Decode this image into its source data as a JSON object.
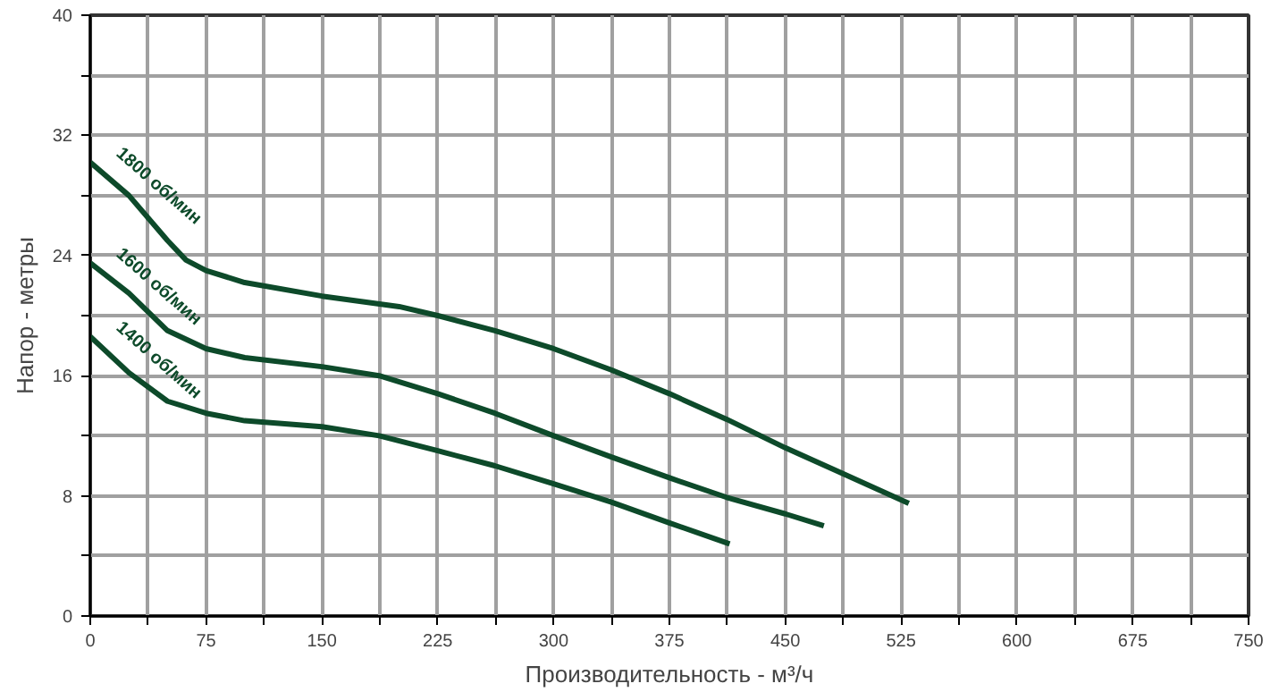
{
  "chart_data": {
    "type": "line",
    "xlabel": "Производительность - м³/ч",
    "ylabel": "Напор - метры",
    "xlim": [
      0,
      750
    ],
    "ylim": [
      0,
      40
    ],
    "xticks": [
      0,
      {
        "value": 37.5,
        "label": null
      },
      75,
      {
        "value": 112.5,
        "label": null
      },
      150,
      {
        "value": 187.5,
        "label": null
      },
      225,
      {
        "value": 262.5,
        "label": null
      },
      300,
      {
        "value": 337.5,
        "label": null
      },
      375,
      {
        "value": 412.5,
        "label": null
      },
      450,
      {
        "value": 487.5,
        "label": null
      },
      525,
      {
        "value": 562.5,
        "label": null
      },
      600,
      {
        "value": 637.5,
        "label": null
      },
      675,
      {
        "value": 712.5,
        "label": null
      },
      750
    ],
    "yticks": [
      0,
      {
        "value": 4,
        "label": null
      },
      8,
      {
        "value": 12,
        "label": null
      },
      16,
      {
        "value": 20,
        "label": null
      },
      24,
      {
        "value": 28,
        "label": null
      },
      32,
      {
        "value": 36,
        "label": null
      },
      40
    ],
    "grid": true,
    "marker": "none",
    "line_style": "solid",
    "series": [
      {
        "name": "1800 об/мин",
        "color": "#0d4a2a",
        "x": [
          0,
          25,
          50,
          62,
          75,
          100,
          150,
          200,
          225,
          262,
          300,
          337,
          375,
          412,
          450,
          487,
          530
        ],
        "values": [
          30.2,
          28,
          25,
          23.7,
          23,
          22.2,
          21.3,
          20.6,
          20,
          19,
          17.8,
          16.4,
          14.8,
          13.1,
          11.2,
          9.5,
          7.5
        ]
      },
      {
        "name": "1600 об/мин",
        "color": "#0d4a2a",
        "x": [
          0,
          25,
          50,
          75,
          100,
          150,
          187,
          225,
          262,
          300,
          337,
          375,
          412,
          450,
          475
        ],
        "values": [
          23.5,
          21.5,
          19,
          17.8,
          17.2,
          16.6,
          16,
          14.8,
          13.5,
          12,
          10.6,
          9.2,
          7.9,
          6.8,
          6
        ]
      },
      {
        "name": "1400 об/мин",
        "color": "#0d4a2a",
        "x": [
          0,
          25,
          50,
          75,
          100,
          150,
          187,
          225,
          262,
          300,
          337,
          375,
          414
        ],
        "values": [
          18.6,
          16.2,
          14.3,
          13.5,
          13,
          12.6,
          12,
          11,
          10,
          8.8,
          7.6,
          6.2,
          4.8
        ]
      }
    ]
  }
}
